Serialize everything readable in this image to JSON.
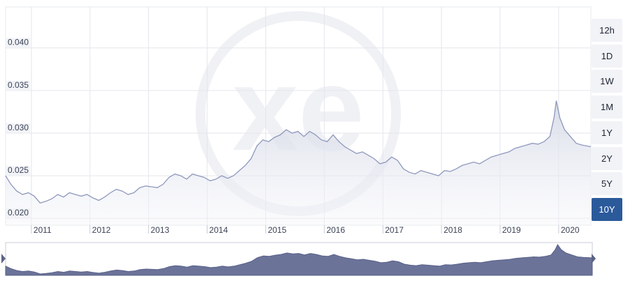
{
  "chart_data": {
    "type": "line",
    "watermark": "xe",
    "color": "#8f98bd",
    "xlim": [
      2010.56,
      2020.55
    ],
    "xticks": [
      2011,
      2012,
      2013,
      2014,
      2015,
      2016,
      2017,
      2018,
      2019,
      2020
    ],
    "ylim": [
      0.0192,
      0.0448
    ],
    "yticks": [
      {
        "value": 0.02,
        "label": "0.020"
      },
      {
        "value": 0.025,
        "label": "0.025"
      },
      {
        "value": 0.03,
        "label": "0.030"
      },
      {
        "value": 0.035,
        "label": "0.035"
      },
      {
        "value": 0.04,
        "label": "0.040"
      }
    ],
    "grid": true,
    "x": [
      2010.56,
      2010.65,
      2010.75,
      2010.85,
      2010.95,
      2011.05,
      2011.15,
      2011.25,
      2011.35,
      2011.45,
      2011.55,
      2011.65,
      2011.75,
      2011.85,
      2011.95,
      2012.05,
      2012.15,
      2012.25,
      2012.35,
      2012.45,
      2012.55,
      2012.65,
      2012.75,
      2012.85,
      2012.95,
      2013.05,
      2013.15,
      2013.25,
      2013.35,
      2013.45,
      2013.55,
      2013.65,
      2013.75,
      2013.85,
      2013.95,
      2014.05,
      2014.15,
      2014.25,
      2014.35,
      2014.45,
      2014.55,
      2014.65,
      2014.75,
      2014.85,
      2014.95,
      2015.05,
      2015.15,
      2015.25,
      2015.35,
      2015.45,
      2015.55,
      2015.65,
      2015.75,
      2015.85,
      2015.95,
      2016.05,
      2016.15,
      2016.25,
      2016.35,
      2016.45,
      2016.55,
      2016.65,
      2016.75,
      2016.85,
      2016.95,
      2017.05,
      2017.15,
      2017.25,
      2017.35,
      2017.45,
      2017.55,
      2017.65,
      2017.75,
      2017.85,
      2017.95,
      2018.05,
      2018.15,
      2018.25,
      2018.35,
      2018.45,
      2018.55,
      2018.65,
      2018.75,
      2018.85,
      2018.95,
      2019.05,
      2019.15,
      2019.25,
      2019.35,
      2019.45,
      2019.55,
      2019.65,
      2019.75,
      2019.85,
      2019.92,
      2019.96,
      2020.02,
      2020.1,
      2020.2,
      2020.3,
      2020.4,
      2020.55
    ],
    "values": [
      0.025,
      0.024,
      0.0232,
      0.0228,
      0.023,
      0.0226,
      0.0218,
      0.022,
      0.0223,
      0.0228,
      0.0225,
      0.023,
      0.0228,
      0.0226,
      0.0228,
      0.0224,
      0.0221,
      0.0225,
      0.023,
      0.0234,
      0.0232,
      0.0228,
      0.023,
      0.0236,
      0.0238,
      0.0237,
      0.0236,
      0.024,
      0.0248,
      0.0252,
      0.025,
      0.0246,
      0.0252,
      0.025,
      0.0248,
      0.0244,
      0.0246,
      0.025,
      0.0247,
      0.025,
      0.0256,
      0.0262,
      0.027,
      0.0285,
      0.0292,
      0.029,
      0.0295,
      0.0298,
      0.0304,
      0.03,
      0.0302,
      0.0296,
      0.0302,
      0.0298,
      0.0292,
      0.029,
      0.0298,
      0.029,
      0.0284,
      0.028,
      0.0276,
      0.0278,
      0.0274,
      0.027,
      0.0264,
      0.0266,
      0.0272,
      0.0268,
      0.0258,
      0.0254,
      0.0252,
      0.0256,
      0.0254,
      0.0252,
      0.025,
      0.0256,
      0.0255,
      0.0258,
      0.0262,
      0.0264,
      0.0266,
      0.0264,
      0.0268,
      0.0272,
      0.0274,
      0.0276,
      0.0278,
      0.0282,
      0.0284,
      0.0286,
      0.0288,
      0.0287,
      0.029,
      0.0296,
      0.0318,
      0.0338,
      0.0318,
      0.0304,
      0.0296,
      0.0288,
      0.0286,
      0.0284
    ]
  },
  "range_buttons": {
    "labels": [
      "12h",
      "1D",
      "1W",
      "1M",
      "1Y",
      "2Y",
      "5Y",
      "10Y"
    ],
    "active": "10Y"
  }
}
